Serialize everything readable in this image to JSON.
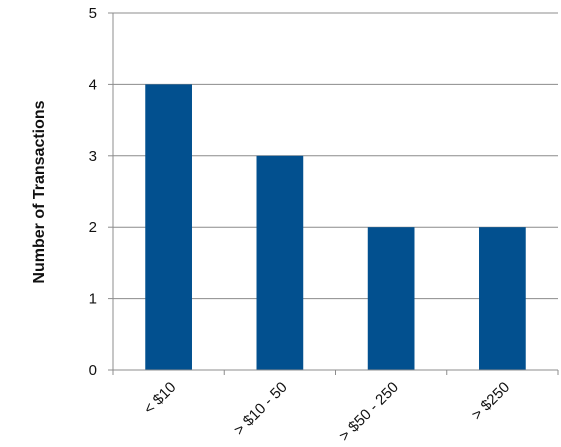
{
  "chart_data": {
    "type": "bar",
    "title": "",
    "xlabel": "",
    "ylabel": "Number of Transactions",
    "categories": [
      "< $10",
      "> $10 - 50",
      "> $50 - 250",
      "> $250"
    ],
    "values": [
      4,
      3,
      2,
      2
    ],
    "ylim": [
      0,
      5
    ],
    "yticks": [
      0,
      1,
      2,
      3,
      4,
      5
    ],
    "grid": true,
    "legend": "none",
    "bar_color": "#02508f",
    "grid_color": "#8c8c8c",
    "axis_color": "#8c8c8c"
  }
}
